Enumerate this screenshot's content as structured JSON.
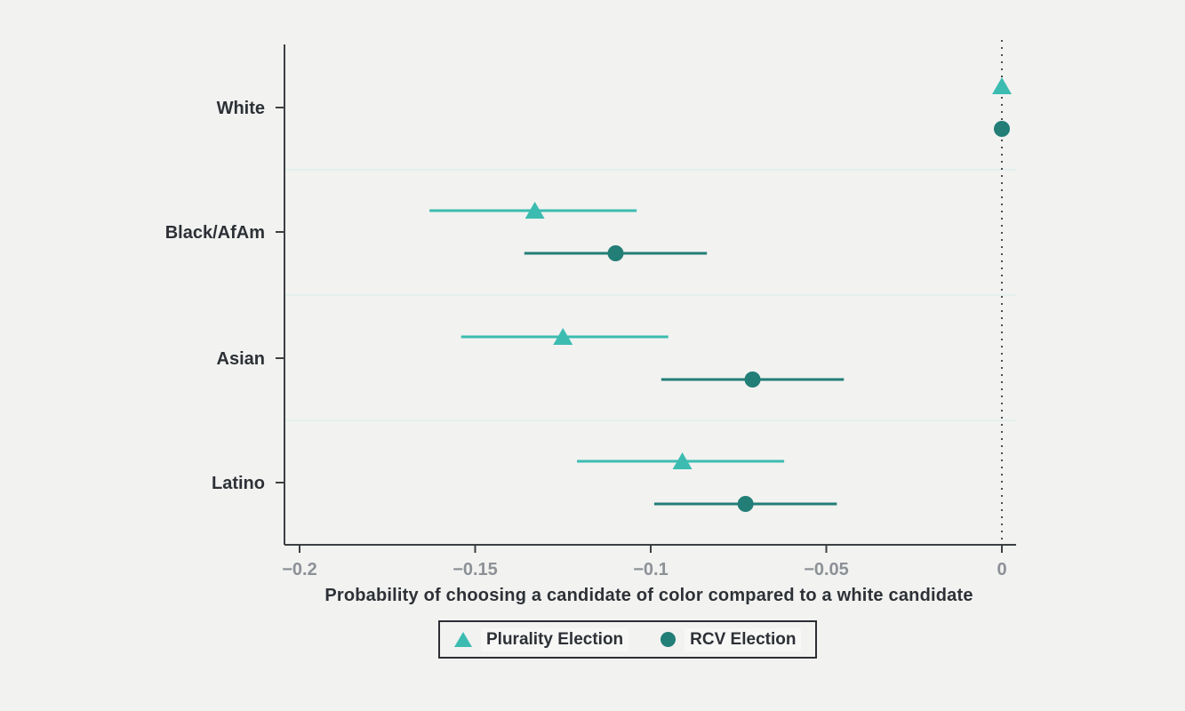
{
  "chart_data": {
    "type": "scatter",
    "subtype": "dot-and-whisker coefficient plot with 95% confidence intervals",
    "title": "",
    "xlabel": "Probability of choosing a candidate of color compared to a white candidate",
    "ylabel": "",
    "xlim": [
      -0.204,
      0.004
    ],
    "grid": "light horizontal band separators between categories",
    "legend_position": "bottom-center-boxed",
    "categories": [
      "White",
      "Black/AfAm",
      "Asian",
      "Latino"
    ],
    "x_ticks": [
      {
        "value": -0.2,
        "label": "−0.2"
      },
      {
        "value": -0.15,
        "label": "−0.15"
      },
      {
        "value": -0.1,
        "label": "−0.1"
      },
      {
        "value": -0.05,
        "label": "−0.05"
      },
      {
        "value": 0,
        "label": "0"
      }
    ],
    "reference_line_x": 0,
    "series": [
      {
        "name": "Plurality Election",
        "marker": "triangle",
        "color": "#3cbcb0",
        "points": [
          {
            "category": "White",
            "value": 0,
            "ci_low": 0,
            "ci_high": 0
          },
          {
            "category": "Black/AfAm",
            "value": -0.133,
            "ci_low": -0.163,
            "ci_high": -0.104
          },
          {
            "category": "Asian",
            "value": -0.125,
            "ci_low": -0.154,
            "ci_high": -0.095
          },
          {
            "category": "Latino",
            "value": -0.091,
            "ci_low": -0.121,
            "ci_high": -0.062
          }
        ]
      },
      {
        "name": "RCV Election",
        "marker": "circle",
        "color": "#227e77",
        "points": [
          {
            "category": "White",
            "value": 0,
            "ci_low": 0,
            "ci_high": 0
          },
          {
            "category": "Black/AfAm",
            "value": -0.11,
            "ci_low": -0.136,
            "ci_high": -0.084
          },
          {
            "category": "Asian",
            "value": -0.071,
            "ci_low": -0.097,
            "ci_high": -0.045
          },
          {
            "category": "Latino",
            "value": -0.073,
            "ci_low": -0.099,
            "ci_high": -0.047
          }
        ]
      }
    ],
    "colors": {
      "background": "#f2f2f1",
      "axis": "#3d4043",
      "tick_label": "#8c9196",
      "category_label": "#2d3136",
      "zero_line": "#4a4d52",
      "band_separator": "#e3f0ed",
      "legend_border": "#2b2e33"
    }
  }
}
